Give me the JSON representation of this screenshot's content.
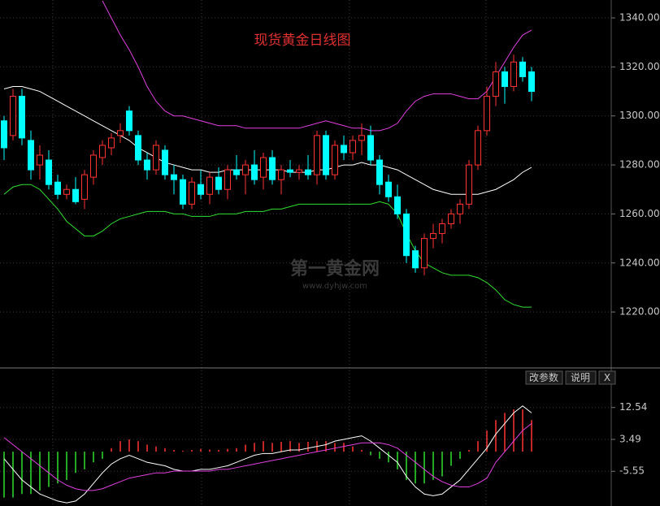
{
  "chart_data": [
    {
      "type": "candlestick",
      "title": "现货黄金日线图",
      "up_color": "#ff3232",
      "down_color": "#00ffff",
      "ylim": [
        1197.5,
        1347.3
      ],
      "yticks": [
        {
          "value": 1220,
          "label": "1220.00"
        },
        {
          "value": 1240,
          "label": "1240.00"
        },
        {
          "value": 1260,
          "label": "1260.00"
        },
        {
          "value": 1280,
          "label": "1280.00"
        },
        {
          "value": 1300,
          "label": "1300.00"
        },
        {
          "value": 1320,
          "label": "1320.00"
        },
        {
          "value": 1340,
          "label": "1340.00"
        }
      ],
      "grid": true,
      "ohlc": [
        [
          1298,
          1300,
          1282,
          1287
        ],
        [
          1292,
          1311,
          1290,
          1308
        ],
        [
          1308,
          1311,
          1288,
          1291
        ],
        [
          1290,
          1294,
          1274,
          1278
        ],
        [
          1280,
          1288,
          1274,
          1284
        ],
        [
          1282,
          1286,
          1270,
          1272
        ],
        [
          1273,
          1276,
          1266,
          1268
        ],
        [
          1268,
          1272,
          1266,
          1270
        ],
        [
          1270,
          1275,
          1264,
          1265
        ],
        [
          1266,
          1278,
          1262,
          1276
        ],
        [
          1275,
          1286,
          1272,
          1284
        ],
        [
          1283,
          1290,
          1280,
          1288
        ],
        [
          1287,
          1293,
          1284,
          1291
        ],
        [
          1292,
          1297,
          1289,
          1294
        ],
        [
          1302,
          1304,
          1292,
          1294
        ],
        [
          1292,
          1294,
          1280,
          1282
        ],
        [
          1282,
          1285,
          1274,
          1278
        ],
        [
          1278,
          1290,
          1276,
          1288
        ],
        [
          1286,
          1288,
          1274,
          1276
        ],
        [
          1276,
          1280,
          1268,
          1274
        ],
        [
          1274,
          1276,
          1262,
          1264
        ],
        [
          1264,
          1275,
          1262,
          1273
        ],
        [
          1272,
          1278,
          1266,
          1268
        ],
        [
          1268,
          1277,
          1264,
          1275
        ],
        [
          1275,
          1279,
          1268,
          1270
        ],
        [
          1270,
          1280,
          1266,
          1278
        ],
        [
          1278,
          1284,
          1274,
          1276
        ],
        [
          1276,
          1282,
          1268,
          1280
        ],
        [
          1280,
          1286,
          1272,
          1274
        ],
        [
          1275,
          1285,
          1270,
          1283
        ],
        [
          1283,
          1286,
          1272,
          1274
        ],
        [
          1274,
          1280,
          1268,
          1278
        ],
        [
          1278,
          1282,
          1275,
          1277
        ],
        [
          1277,
          1280,
          1274,
          1278
        ],
        [
          1278,
          1284,
          1274,
          1276
        ],
        [
          1276,
          1294,
          1272,
          1292
        ],
        [
          1292,
          1294,
          1274,
          1276
        ],
        [
          1276,
          1290,
          1274,
          1288
        ],
        [
          1288,
          1292,
          1282,
          1285
        ],
        [
          1285,
          1292,
          1282,
          1290
        ],
        [
          1290,
          1297,
          1284,
          1292
        ],
        [
          1292,
          1296,
          1280,
          1282
        ],
        [
          1282,
          1284,
          1268,
          1272
        ],
        [
          1273,
          1276,
          1265,
          1267
        ],
        [
          1267,
          1272,
          1258,
          1260
        ],
        [
          1260,
          1262,
          1240,
          1243
        ],
        [
          1245,
          1247,
          1236,
          1238
        ],
        [
          1238,
          1252,
          1235,
          1250
        ],
        [
          1250,
          1256,
          1246,
          1252
        ],
        [
          1252,
          1258,
          1248,
          1256
        ],
        [
          1256,
          1262,
          1254,
          1260
        ],
        [
          1260,
          1266,
          1256,
          1264
        ],
        [
          1264,
          1282,
          1262,
          1280
        ],
        [
          1280,
          1296,
          1278,
          1294
        ],
        [
          1294,
          1312,
          1292,
          1308
        ],
        [
          1308,
          1322,
          1304,
          1318
        ],
        [
          1318,
          1320,
          1305,
          1312
        ],
        [
          1312,
          1325,
          1310,
          1322
        ],
        [
          1322,
          1324,
          1314,
          1316
        ],
        [
          1318,
          1320,
          1306,
          1310
        ]
      ],
      "series": [
        {
          "color": "#e040e0",
          "values": [
            null,
            null,
            null,
            null,
            null,
            null,
            null,
            null,
            null,
            null,
            null,
            1347,
            1340,
            1333,
            1327,
            1320,
            1312,
            1306,
            1302,
            1300,
            1300,
            1299,
            1298,
            1297,
            1296,
            1296,
            1296,
            1295,
            1295,
            1295,
            1295,
            1295,
            1295,
            1295,
            1296,
            1297,
            1298,
            1297,
            1296,
            1295,
            1295,
            1294,
            1294,
            1295,
            1297,
            1302,
            1306,
            1308,
            1309,
            1309,
            1309,
            1308,
            1307,
            1307,
            1310,
            1316,
            1322,
            1328,
            1333,
            1335
          ]
        },
        {
          "color": "#ffffff",
          "values": [
            1311,
            1312,
            1312,
            1311,
            1310,
            1308,
            1306,
            1304,
            1302,
            1300,
            1298,
            1296,
            1294,
            1292,
            1290,
            1287,
            1285,
            1283,
            1281,
            1280,
            1279,
            1278,
            1278,
            1277,
            1277,
            1278,
            1278,
            1278,
            1278,
            1278,
            1278,
            1278,
            1277,
            1277,
            1277,
            1278,
            1278,
            1279,
            1280,
            1280,
            1281,
            1280,
            1280,
            1279,
            1278,
            1276,
            1274,
            1272,
            1270,
            1269,
            1268,
            1268,
            1268,
            1268,
            1269,
            1270,
            1272,
            1274,
            1277,
            1279
          ]
        },
        {
          "color": "#30e030",
          "values": [
            1268,
            1271,
            1272,
            1272,
            1270,
            1266,
            1262,
            1257,
            1254,
            1251,
            1251,
            1253,
            1256,
            1258,
            1259,
            1260,
            1261,
            1261,
            1261,
            1260,
            1260,
            1259,
            1259,
            1259,
            1260,
            1260,
            1260,
            1261,
            1261,
            1261,
            1262,
            1262,
            1263,
            1264,
            1264,
            1264,
            1264,
            1264,
            1264,
            1264,
            1264,
            1264,
            1265,
            1264,
            1260,
            1252,
            1245,
            1240,
            1238,
            1236,
            1235,
            1235,
            1235,
            1234,
            1232,
            1229,
            1225,
            1223,
            1222,
            1222
          ]
        }
      ]
    },
    {
      "type": "macd",
      "ylim": [
        -15.4,
        23.3
      ],
      "yticks": [
        -5.55,
        3.49,
        12.54
      ],
      "grid": true,
      "up_color": "#ff3232",
      "down_color": "#30e030",
      "values": [
        -13,
        -13,
        -12,
        -12,
        -11,
        -10,
        -9,
        -8,
        -6,
        -5,
        -3,
        -2,
        1,
        3,
        3.5,
        3,
        2,
        1.5,
        1,
        0.5,
        0.3,
        0.5,
        0.8,
        0.6,
        0.5,
        0.8,
        1,
        2,
        2.5,
        3,
        2.5,
        2.8,
        3,
        2.5,
        2.8,
        3,
        3,
        2.5,
        2.5,
        1.5,
        0.5,
        -1,
        -2,
        -3,
        -5,
        -8,
        -9,
        -9,
        -8,
        -7,
        -4,
        -2,
        0.5,
        3,
        6,
        9,
        11,
        12,
        12,
        9
      ],
      "series": [
        {
          "color": "#ffffff",
          "values": [
            -2,
            -5,
            -8,
            -10,
            -12,
            -13,
            -14,
            -14.5,
            -14,
            -12,
            -9,
            -6,
            -3.5,
            -2,
            -1,
            -2,
            -3,
            -3.5,
            -4,
            -5,
            -5.5,
            -5.5,
            -5,
            -5,
            -4.5,
            -4,
            -3,
            -2,
            -1,
            -0.5,
            -0.5,
            0,
            0.5,
            0.5,
            1,
            1.5,
            2,
            3,
            3.5,
            4,
            4.5,
            3,
            1,
            -1,
            -3,
            -7,
            -10,
            -12,
            -12.5,
            -12,
            -10,
            -8,
            -5,
            -2,
            1,
            5,
            8,
            11,
            13,
            11
          ]
        },
        {
          "color": "#e040e0",
          "values": [
            4,
            2,
            0,
            -2,
            -4,
            -6,
            -8,
            -9.5,
            -10.5,
            -11,
            -11,
            -10.5,
            -9.5,
            -8.5,
            -7.5,
            -7,
            -6.5,
            -6,
            -6,
            -5.5,
            -5.5,
            -5.5,
            -5.5,
            -5.5,
            -5,
            -5,
            -4.5,
            -4,
            -3.5,
            -3,
            -2.5,
            -2,
            -1.5,
            -1,
            -0.5,
            0,
            0.5,
            1,
            1.5,
            2,
            2.5,
            2.5,
            2.5,
            2,
            1,
            -1,
            -3,
            -5,
            -7,
            -8.5,
            -9.5,
            -10,
            -10,
            -9,
            -7.5,
            -3,
            0,
            3,
            6,
            8
          ]
        }
      ]
    }
  ],
  "watermark": {
    "name": "第一黄金网",
    "url": "www.dyhjw.com"
  },
  "buttons": [
    "改参数",
    "说明",
    "X"
  ]
}
